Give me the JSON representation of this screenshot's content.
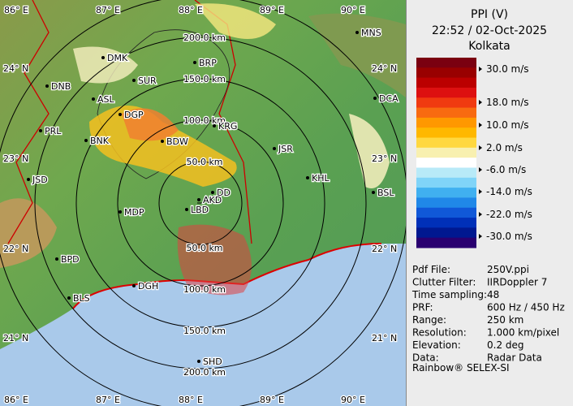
{
  "header": {
    "title": "PPI (V)",
    "time": "22:52 / 02-Oct-2025",
    "location": "Kolkata"
  },
  "legend": {
    "labels": [
      "30.0 m/s",
      "18.0 m/s",
      "10.0 m/s",
      "2.0 m/s",
      "-6.0 m/s",
      "-14.0 m/s",
      "-22.0 m/s",
      "-30.0 m/s"
    ]
  },
  "info": [
    [
      "Pdf File:",
      "250V.ppi"
    ],
    [
      "Clutter Filter:",
      "IIRDoppler 7"
    ],
    [
      "Time sampling:",
      "48"
    ],
    [
      "PRF:",
      "600 Hz / 450 Hz"
    ],
    [
      "Range:",
      "250 km"
    ],
    [
      "Resolution:",
      "1.000 km/pixel"
    ],
    [
      "Elevation:",
      "0.2 deg"
    ],
    [
      "Data:",
      "Radar Data"
    ]
  ],
  "footer": "Rainbow® SELEX-SI",
  "longitudes": [
    "86° E",
    "87° E",
    "88° E",
    "89° E",
    "90° E"
  ],
  "latitudes": [
    "24° N",
    "23° N",
    "22° N",
    "21° N"
  ],
  "ring_labels_north": [
    "200.0 km",
    "150.0 km",
    "100.0 km",
    "50.0 km"
  ],
  "ring_labels_south": [
    "50.0 km",
    "100.0 km",
    "150.0 km",
    "200.0 km"
  ],
  "cities": [
    "MNS",
    "DMK",
    "BRP",
    "DNB",
    "SUR",
    "ASL",
    "DGP",
    "DCA",
    "PRL",
    "BNK",
    "BDW",
    "KRG",
    "JSR",
    "KHL",
    "JSD",
    "BSL",
    "DD",
    "AKD",
    "MDP",
    "LBD",
    "BPD",
    "DGH",
    "BLS",
    "SHD"
  ]
}
